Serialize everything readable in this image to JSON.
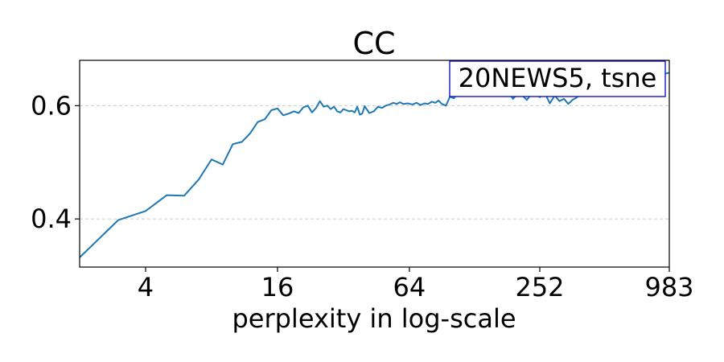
{
  "chart_data": {
    "type": "line",
    "title": "CC",
    "subtitle": "",
    "xlabel": "perplexity in log-scale",
    "ylabel": "",
    "x_scale": "log2",
    "xlim": [
      2,
      983
    ],
    "ylim": [
      0.315,
      0.68
    ],
    "xticks": [
      {
        "value": 4,
        "label": "4"
      },
      {
        "value": 16,
        "label": "16"
      },
      {
        "value": 64,
        "label": "64"
      },
      {
        "value": 252,
        "label": "252"
      },
      {
        "value": 983,
        "label": "983"
      }
    ],
    "yticks": [
      {
        "value": 0.4,
        "label": "0.4"
      },
      {
        "value": 0.6,
        "label": "0.6"
      }
    ],
    "grid": {
      "y": true,
      "x": false,
      "style": "dashed"
    },
    "legend": {
      "text": "20NEWS5, tsne",
      "placement": "top-right"
    },
    "colors": {
      "line": "#1f77b4",
      "legend_border": "#0000cc",
      "grid": "#cccccc"
    },
    "series": [
      {
        "x": [
          2,
          3,
          4,
          5,
          6,
          7,
          8,
          9,
          10,
          11,
          12,
          13,
          14,
          15,
          16,
          17,
          18,
          19,
          20,
          21,
          22,
          23,
          24,
          25,
          26,
          27,
          28,
          29,
          30,
          31,
          32,
          33,
          34,
          35,
          36,
          37,
          38,
          39,
          40,
          42,
          44,
          46,
          48,
          50,
          52,
          54,
          56,
          58,
          60,
          63,
          66,
          69,
          72,
          75,
          78,
          81,
          84,
          87,
          90,
          94,
          98,
          102,
          106,
          110,
          115,
          120,
          125,
          130,
          136,
          142,
          150,
          160,
          170,
          180,
          190,
          200,
          210,
          220,
          230,
          240,
          252,
          265,
          280,
          295,
          310,
          325,
          340,
          355,
          370,
          385,
          400,
          420,
          440,
          460,
          480,
          500,
          530,
          560,
          600,
          650,
          700,
          760,
          830,
          900,
          983
        ],
        "values": [
          0.332,
          0.398,
          0.414,
          0.442,
          0.441,
          0.47,
          0.505,
          0.496,
          0.532,
          0.536,
          0.551,
          0.571,
          0.576,
          0.592,
          0.595,
          0.583,
          0.586,
          0.59,
          0.587,
          0.597,
          0.6,
          0.588,
          0.596,
          0.608,
          0.598,
          0.6,
          0.594,
          0.598,
          0.59,
          0.588,
          0.594,
          0.592,
          0.59,
          0.591,
          0.588,
          0.598,
          0.584,
          0.586,
          0.599,
          0.587,
          0.59,
          0.598,
          0.596,
          0.6,
          0.602,
          0.605,
          0.603,
          0.606,
          0.603,
          0.604,
          0.602,
          0.605,
          0.601,
          0.604,
          0.603,
          0.607,
          0.605,
          0.609,
          0.603,
          0.6,
          0.616,
          0.613,
          0.62,
          0.618,
          0.621,
          0.617,
          0.62,
          0.625,
          0.618,
          0.622,
          0.619,
          0.624,
          0.621,
          0.626,
          0.612,
          0.621,
          0.618,
          0.61,
          0.62,
          0.622,
          0.615,
          0.623,
          0.604,
          0.618,
          0.608,
          0.612,
          0.603,
          0.61,
          0.614,
          0.62,
          0.625,
          0.622,
          0.628,
          0.624,
          0.629,
          0.627,
          0.631,
          0.635,
          0.638,
          0.641,
          0.645,
          0.648,
          0.652,
          0.655,
          0.658
        ]
      }
    ]
  }
}
